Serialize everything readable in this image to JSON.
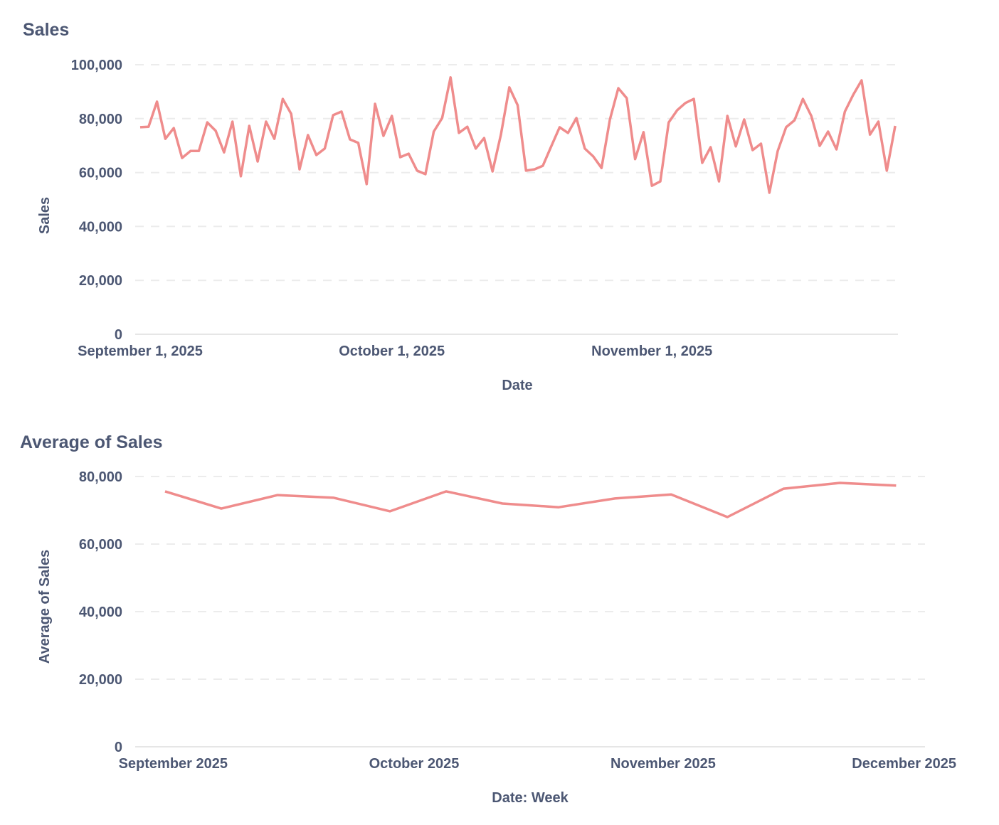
{
  "colors": {
    "series": "#EF8C8C",
    "text": "#4C5773",
    "grid": "#ECECEC"
  },
  "chart_data": [
    {
      "type": "line",
      "title": "Sales",
      "xlabel": "Date",
      "ylabel": "Sales",
      "ylim": [
        0,
        100000
      ],
      "y_ticks": [
        "0",
        "20,000",
        "40,000",
        "60,000",
        "80,000",
        "100,000"
      ],
      "y_tick_values": [
        0,
        20000,
        40000,
        60000,
        80000,
        100000
      ],
      "x_ticks": [
        "September 1, 2025",
        "October 1, 2025",
        "November 1, 2025"
      ],
      "x_tick_values": [
        "2025-09-01",
        "2025-10-01",
        "2025-11-01"
      ],
      "grid": true,
      "x": [
        "2025-09-01",
        "2025-09-02",
        "2025-09-03",
        "2025-09-04",
        "2025-09-05",
        "2025-09-06",
        "2025-09-07",
        "2025-09-08",
        "2025-09-09",
        "2025-09-10",
        "2025-09-11",
        "2025-09-12",
        "2025-09-13",
        "2025-09-14",
        "2025-09-15",
        "2025-09-16",
        "2025-09-17",
        "2025-09-18",
        "2025-09-19",
        "2025-09-20",
        "2025-09-21",
        "2025-09-22",
        "2025-09-23",
        "2025-09-24",
        "2025-09-25",
        "2025-09-26",
        "2025-09-27",
        "2025-09-28",
        "2025-09-29",
        "2025-09-30",
        "2025-10-01",
        "2025-10-02",
        "2025-10-03",
        "2025-10-04",
        "2025-10-05",
        "2025-10-06",
        "2025-10-07",
        "2025-10-08",
        "2025-10-09",
        "2025-10-10",
        "2025-10-11",
        "2025-10-12",
        "2025-10-13",
        "2025-10-14",
        "2025-10-15",
        "2025-10-16",
        "2025-10-17",
        "2025-10-18",
        "2025-10-19",
        "2025-10-20",
        "2025-10-21",
        "2025-10-22",
        "2025-10-23",
        "2025-10-24",
        "2025-10-25",
        "2025-10-26",
        "2025-10-27",
        "2025-10-28",
        "2025-10-29",
        "2025-10-30",
        "2025-10-31",
        "2025-11-01",
        "2025-11-02",
        "2025-11-03",
        "2025-11-04",
        "2025-11-05",
        "2025-11-06",
        "2025-11-07",
        "2025-11-08",
        "2025-11-09",
        "2025-11-10",
        "2025-11-11",
        "2025-11-12",
        "2025-11-13",
        "2025-11-14",
        "2025-11-15",
        "2025-11-16",
        "2025-11-17",
        "2025-11-18",
        "2025-11-19",
        "2025-11-20",
        "2025-11-21",
        "2025-11-22",
        "2025-11-23",
        "2025-11-24",
        "2025-11-25",
        "2025-11-26",
        "2025-11-27",
        "2025-11-28",
        "2025-11-29",
        "2025-11-30"
      ],
      "values": [
        76800,
        77000,
        86300,
        72500,
        76500,
        65400,
        68000,
        68000,
        78600,
        75500,
        67500,
        78900,
        58600,
        77300,
        64100,
        78900,
        72500,
        87300,
        81800,
        61200,
        73900,
        66500,
        68900,
        81300,
        82600,
        72300,
        71000,
        55700,
        85500,
        73600,
        81000,
        65700,
        67000,
        60700,
        59400,
        75200,
        80200,
        95300,
        74700,
        77000,
        68900,
        72800,
        60400,
        74100,
        91600,
        85000,
        60700,
        61200,
        62500,
        69700,
        76800,
        74700,
        80200,
        68900,
        66000,
        61700,
        79700,
        91300,
        87600,
        65000,
        75000,
        55100,
        56700,
        78600,
        83100,
        85800,
        87300,
        63600,
        69400,
        56700,
        81000,
        69700,
        79700,
        68300,
        70700,
        52500,
        68000,
        76800,
        79400,
        87300,
        81000,
        69900,
        75200,
        68600,
        82600,
        88900,
        94200,
        74100,
        78900,
        60700,
        77300
      ]
    },
    {
      "type": "line",
      "title": "Average of Sales",
      "xlabel": "Date: Week",
      "ylabel": "Average of Sales",
      "ylim": [
        0,
        80000
      ],
      "y_ticks": [
        "0",
        "20,000",
        "40,000",
        "60,000",
        "80,000"
      ],
      "y_tick_values": [
        0,
        20000,
        40000,
        60000,
        80000
      ],
      "x_ticks": [
        "September 2025",
        "October 2025",
        "November 2025",
        "December 2025"
      ],
      "x_tick_values": [
        "2025-09-01",
        "2025-10-01",
        "2025-11-01",
        "2025-12-01"
      ],
      "grid": true,
      "x": [
        "2025-08-31",
        "2025-09-07",
        "2025-09-14",
        "2025-09-21",
        "2025-09-28",
        "2025-10-05",
        "2025-10-12",
        "2025-10-19",
        "2025-10-26",
        "2025-11-02",
        "2025-11-09",
        "2025-11-16",
        "2025-11-23",
        "2025-11-30"
      ],
      "values": [
        75600,
        70500,
        74500,
        73700,
        69700,
        75600,
        72000,
        70900,
        73500,
        74700,
        68000,
        76400,
        78100,
        77300
      ]
    }
  ]
}
